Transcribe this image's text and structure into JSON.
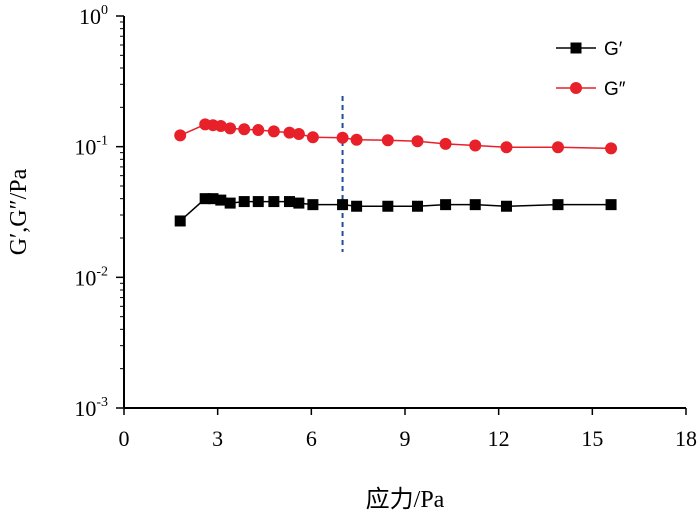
{
  "chart_data": {
    "type": "line",
    "title": "",
    "xlabel": "应力/Pa",
    "ylabel": "G′,G″/Pa",
    "xlim": [
      0,
      18
    ],
    "ylim": [
      0.001,
      1
    ],
    "yscale": "log",
    "x_ticks": [
      "0",
      "3",
      "6",
      "9",
      "12",
      "15",
      "18"
    ],
    "x_tick_values": [
      0,
      3,
      6,
      9,
      12,
      15,
      18
    ],
    "y_ticks": [
      {
        "base": "10",
        "exp": "0",
        "value": 1
      },
      {
        "base": "10",
        "exp": "-1",
        "value": 0.1
      },
      {
        "base": "10",
        "exp": "-2",
        "value": 0.01
      },
      {
        "base": "10",
        "exp": "-3",
        "value": 0.001
      }
    ],
    "legend_position": "top-right",
    "reference_line": {
      "x": 7,
      "style": "dashed",
      "color": "#1f4e9c"
    },
    "series": [
      {
        "name": "G′",
        "marker": "square",
        "color": "#000000",
        "x": [
          1.8,
          2.6,
          2.85,
          3.1,
          3.4,
          3.85,
          4.3,
          4.8,
          5.3,
          5.6,
          6.05,
          7.0,
          7.45,
          8.45,
          9.4,
          10.3,
          11.25,
          12.25,
          13.9,
          15.6
        ],
        "y": [
          0.027,
          0.04,
          0.04,
          0.039,
          0.037,
          0.038,
          0.038,
          0.038,
          0.038,
          0.037,
          0.036,
          0.036,
          0.035,
          0.035,
          0.035,
          0.036,
          0.036,
          0.035,
          0.036,
          0.036
        ]
      },
      {
        "name": "G″",
        "marker": "circle",
        "color": "#e8202a",
        "x": [
          1.8,
          2.6,
          2.85,
          3.1,
          3.4,
          3.85,
          4.3,
          4.8,
          5.3,
          5.6,
          6.05,
          7.0,
          7.45,
          8.45,
          9.4,
          10.3,
          11.25,
          12.25,
          13.9,
          15.6
        ],
        "y": [
          0.122,
          0.148,
          0.146,
          0.144,
          0.138,
          0.136,
          0.134,
          0.131,
          0.128,
          0.125,
          0.118,
          0.117,
          0.113,
          0.112,
          0.11,
          0.105,
          0.102,
          0.099,
          0.099,
          0.097
        ]
      }
    ]
  }
}
